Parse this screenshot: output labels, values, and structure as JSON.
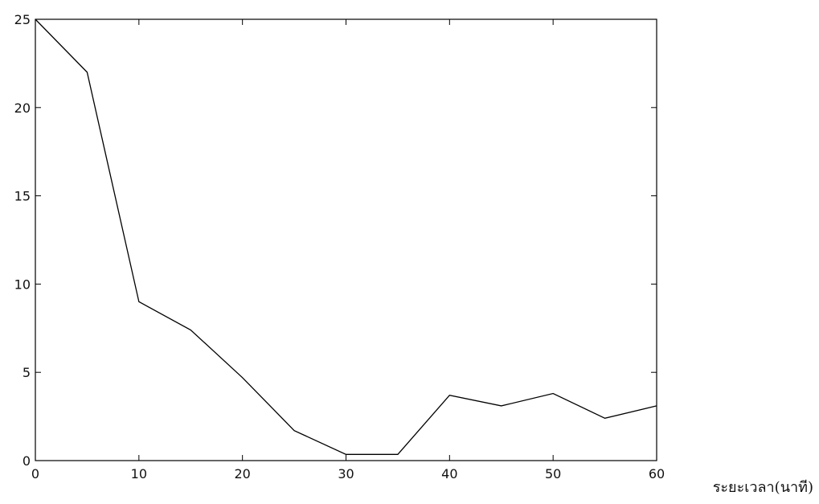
{
  "chart_data": {
    "type": "line",
    "x_label": "ระยะเวลา(นาที)",
    "x": [
      0,
      5,
      10,
      15,
      20,
      25,
      30,
      35,
      40,
      45,
      50,
      55,
      60
    ],
    "series": [
      {
        "color": "#000000",
        "values": [
          25,
          22,
          9,
          7.4,
          4.7,
          1.7,
          0.35,
          0.35,
          3.7,
          3.1,
          3.8,
          2.4,
          3.1
        ]
      }
    ],
    "xlim": [
      0,
      60
    ],
    "xticks": [
      0,
      10,
      20,
      30,
      40,
      50,
      60
    ],
    "ylim": [
      0,
      25
    ],
    "yticks": [
      0,
      5,
      10,
      15,
      20,
      25
    ],
    "grid": false
  }
}
